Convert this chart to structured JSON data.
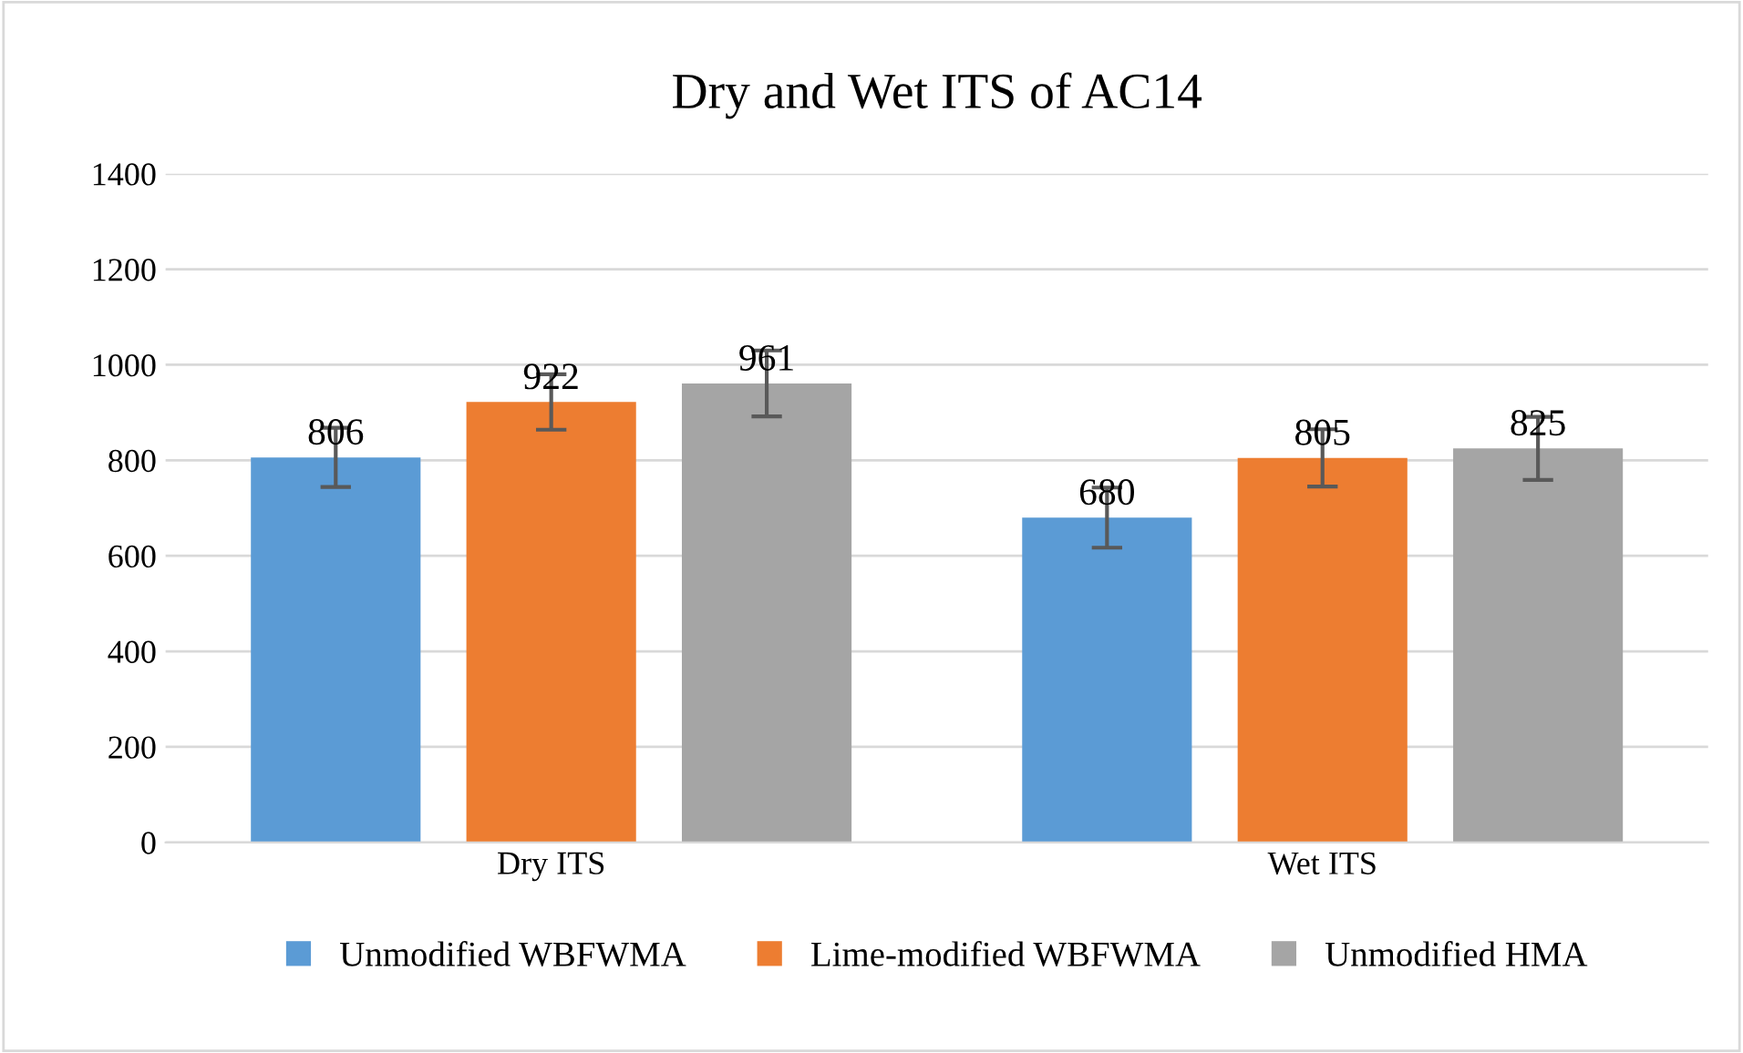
{
  "chart_data": {
    "type": "bar",
    "title": "Dry and Wet ITS of AC14",
    "categories": [
      "Dry ITS",
      "Wet ITS"
    ],
    "series": [
      {
        "name": "Unmodified WBFWMA",
        "color": "#5b9bd5",
        "values": [
          806,
          680
        ],
        "errors": [
          62,
          63
        ]
      },
      {
        "name": "Lime-modified WBFWMA",
        "color": "#ed7d31",
        "values": [
          922,
          805
        ],
        "errors": [
          58,
          60
        ]
      },
      {
        "name": "Unmodified HMA",
        "color": "#a5a5a5",
        "values": [
          961,
          825
        ],
        "errors": [
          69,
          66
        ]
      }
    ],
    "ylim": [
      0,
      1400
    ],
    "yticks": [
      0,
      200,
      400,
      600,
      800,
      1000,
      1200,
      1400
    ],
    "grid": "y",
    "legend": "bottom",
    "data_labels": true
  }
}
